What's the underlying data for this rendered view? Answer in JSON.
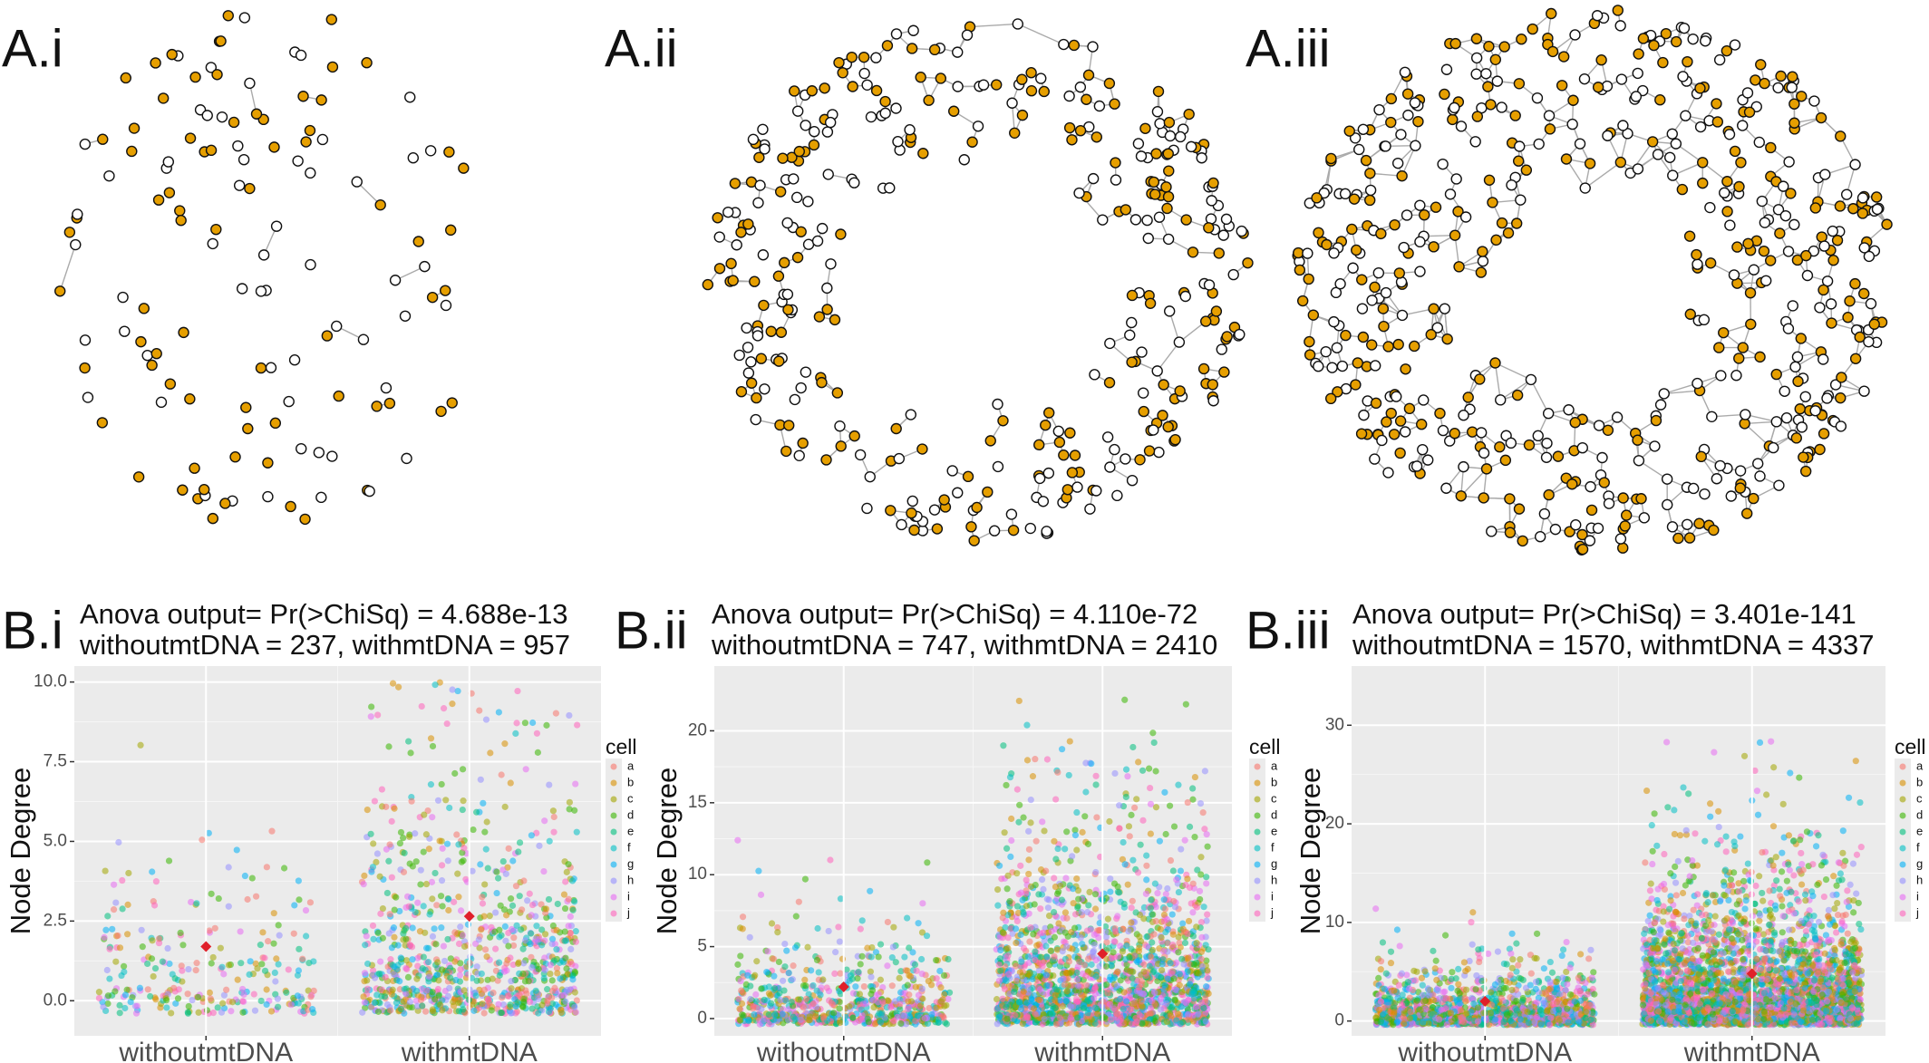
{
  "networks": [
    {
      "label": "A.i"
    },
    {
      "label": "A.ii"
    },
    {
      "label": "A.iii"
    }
  ],
  "chart_data": [
    {
      "type": "scatter",
      "panel": "B.i",
      "title": "Anova output= Pr(>ChiSq) = 4.688e-13",
      "subtitle": "withoutmtDNA = 237, withmtDNA = 957",
      "ylabel": "Node Degree",
      "categories": [
        "withoutmtDNA",
        "withmtDNA"
      ],
      "values": [
        1.7,
        2.65
      ],
      "color": "#e0202a",
      "ylim": [
        -1.1,
        10.5
      ],
      "yticks": [
        {
          "value": 0,
          "label": "0.0"
        },
        {
          "value": 2.5,
          "label": "2.5"
        },
        {
          "value": 5,
          "label": "5.0"
        },
        {
          "value": 7.5,
          "label": "7.5"
        },
        {
          "value": 10,
          "label": "10.0"
        }
      ],
      "grid": true,
      "legend_title": "cell",
      "series": [
        {
          "name": "a",
          "color": "#F8766D"
        },
        {
          "name": "b",
          "color": "#D89000"
        },
        {
          "name": "c",
          "color": "#A3A500"
        },
        {
          "name": "d",
          "color": "#39B600"
        },
        {
          "name": "e",
          "color": "#00BF7D"
        },
        {
          "name": "f",
          "color": "#00BFC4"
        },
        {
          "name": "g",
          "color": "#00B0F6"
        },
        {
          "name": "h",
          "color": "#9590FF"
        },
        {
          "name": "i",
          "color": "#E76BF3"
        },
        {
          "name": "j",
          "color": "#FF62BC"
        }
      ]
    },
    {
      "type": "scatter",
      "panel": "B.ii",
      "title": "Anova output= Pr(>ChiSq) = 4.110e-72",
      "subtitle": "withoutmtDNA = 747, withmtDNA = 2410",
      "ylabel": "Node Degree",
      "categories": [
        "withoutmtDNA",
        "withmtDNA"
      ],
      "values": [
        2.2,
        4.5
      ],
      "color": "#e0202a",
      "ylim": [
        -1.2,
        24.5
      ],
      "yticks": [
        0,
        5,
        10,
        15,
        20
      ],
      "grid": true,
      "legend_title": "cell",
      "series": [
        {
          "name": "a",
          "color": "#F8766D"
        },
        {
          "name": "b",
          "color": "#D89000"
        },
        {
          "name": "c",
          "color": "#A3A500"
        },
        {
          "name": "d",
          "color": "#39B600"
        },
        {
          "name": "e",
          "color": "#00BF7D"
        },
        {
          "name": "f",
          "color": "#00BFC4"
        },
        {
          "name": "g",
          "color": "#00B0F6"
        },
        {
          "name": "h",
          "color": "#9590FF"
        },
        {
          "name": "i",
          "color": "#E76BF3"
        },
        {
          "name": "j",
          "color": "#FF62BC"
        }
      ]
    },
    {
      "type": "scatter",
      "panel": "B.iii",
      "title": "Anova output= Pr(>ChiSq) = 3.401e-141",
      "subtitle": "withoutmtDNA = 1570, withmtDNA = 4337",
      "ylabel": "Node Degree",
      "categories": [
        "withoutmtDNA",
        "withmtDNA"
      ],
      "values": [
        2.0,
        4.8
      ],
      "color": "#e0202a",
      "ylim": [
        -1.5,
        36
      ],
      "yticks": [
        0,
        10,
        20,
        30
      ],
      "grid": true,
      "legend_title": "cell",
      "series": [
        {
          "name": "a",
          "color": "#F8766D"
        },
        {
          "name": "b",
          "color": "#D89000"
        },
        {
          "name": "c",
          "color": "#A3A500"
        },
        {
          "name": "d",
          "color": "#39B600"
        },
        {
          "name": "e",
          "color": "#00BF7D"
        },
        {
          "name": "f",
          "color": "#00BFC4"
        },
        {
          "name": "g",
          "color": "#00B0F6"
        },
        {
          "name": "h",
          "color": "#9590FF"
        },
        {
          "name": "i",
          "color": "#E76BF3"
        },
        {
          "name": "j",
          "color": "#FF62BC"
        }
      ]
    }
  ]
}
